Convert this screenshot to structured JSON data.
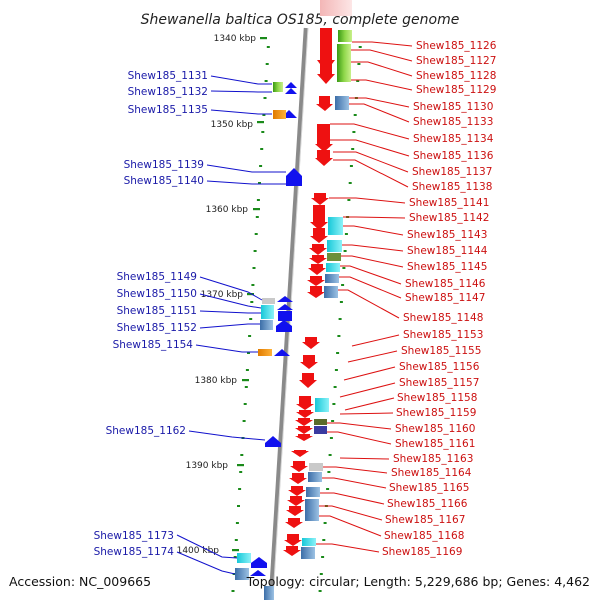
{
  "title": "Shewanella baltica OS185, complete genome",
  "accession": "Accession: NC_009665",
  "topology": "Topology: circular; Length: 5,229,686 bp; Genes: 4,462",
  "kbp_labels": [
    "1340 kbp",
    "1350 kbp",
    "1360 kbp",
    "1370 kbp",
    "1380 kbp",
    "1390 kbp",
    "1400 kbp"
  ],
  "left_genes": [
    "Shew185_1131",
    "Shew185_1132",
    "Shew185_1135",
    "Shew185_1139",
    "Shew185_1140",
    "Shew185_1149",
    "Shew185_1150",
    "Shew185_1151",
    "Shew185_1152",
    "Shew185_1154",
    "Shew185_1162",
    "Shew185_1173",
    "Shew185_1174"
  ],
  "right_genes": [
    "Shew185_1126",
    "Shew185_1127",
    "Shew185_1128",
    "Shew185_1129",
    "Shew185_1130",
    "Shew185_1133",
    "Shew185_1134",
    "Shew185_1136",
    "Shew185_1137",
    "Shew185_1138",
    "Shew185_1141",
    "Shew185_1142",
    "Shew185_1143",
    "Shew185_1144",
    "Shew185_1145",
    "Shew185_1146",
    "Shew185_1147",
    "Shew185_1148",
    "Shew185_1153",
    "Shew185_1155",
    "Shew185_1156",
    "Shew185_1157",
    "Shew185_1158",
    "Shew185_1159",
    "Shew185_1160",
    "Shew185_1161",
    "Shew185_1163",
    "Shew185_1164",
    "Shew185_1165",
    "Shew185_1166",
    "Shew185_1167",
    "Shew185_1168",
    "Shew185_1169"
  ],
  "colors": {
    "forward_strand": "#ee1111",
    "reverse_strand": "#1111ee",
    "backbone": "#999999",
    "ticks": "#1a8a1a",
    "left_label": "#1a1aa8",
    "right_label": "#cc1111"
  }
}
